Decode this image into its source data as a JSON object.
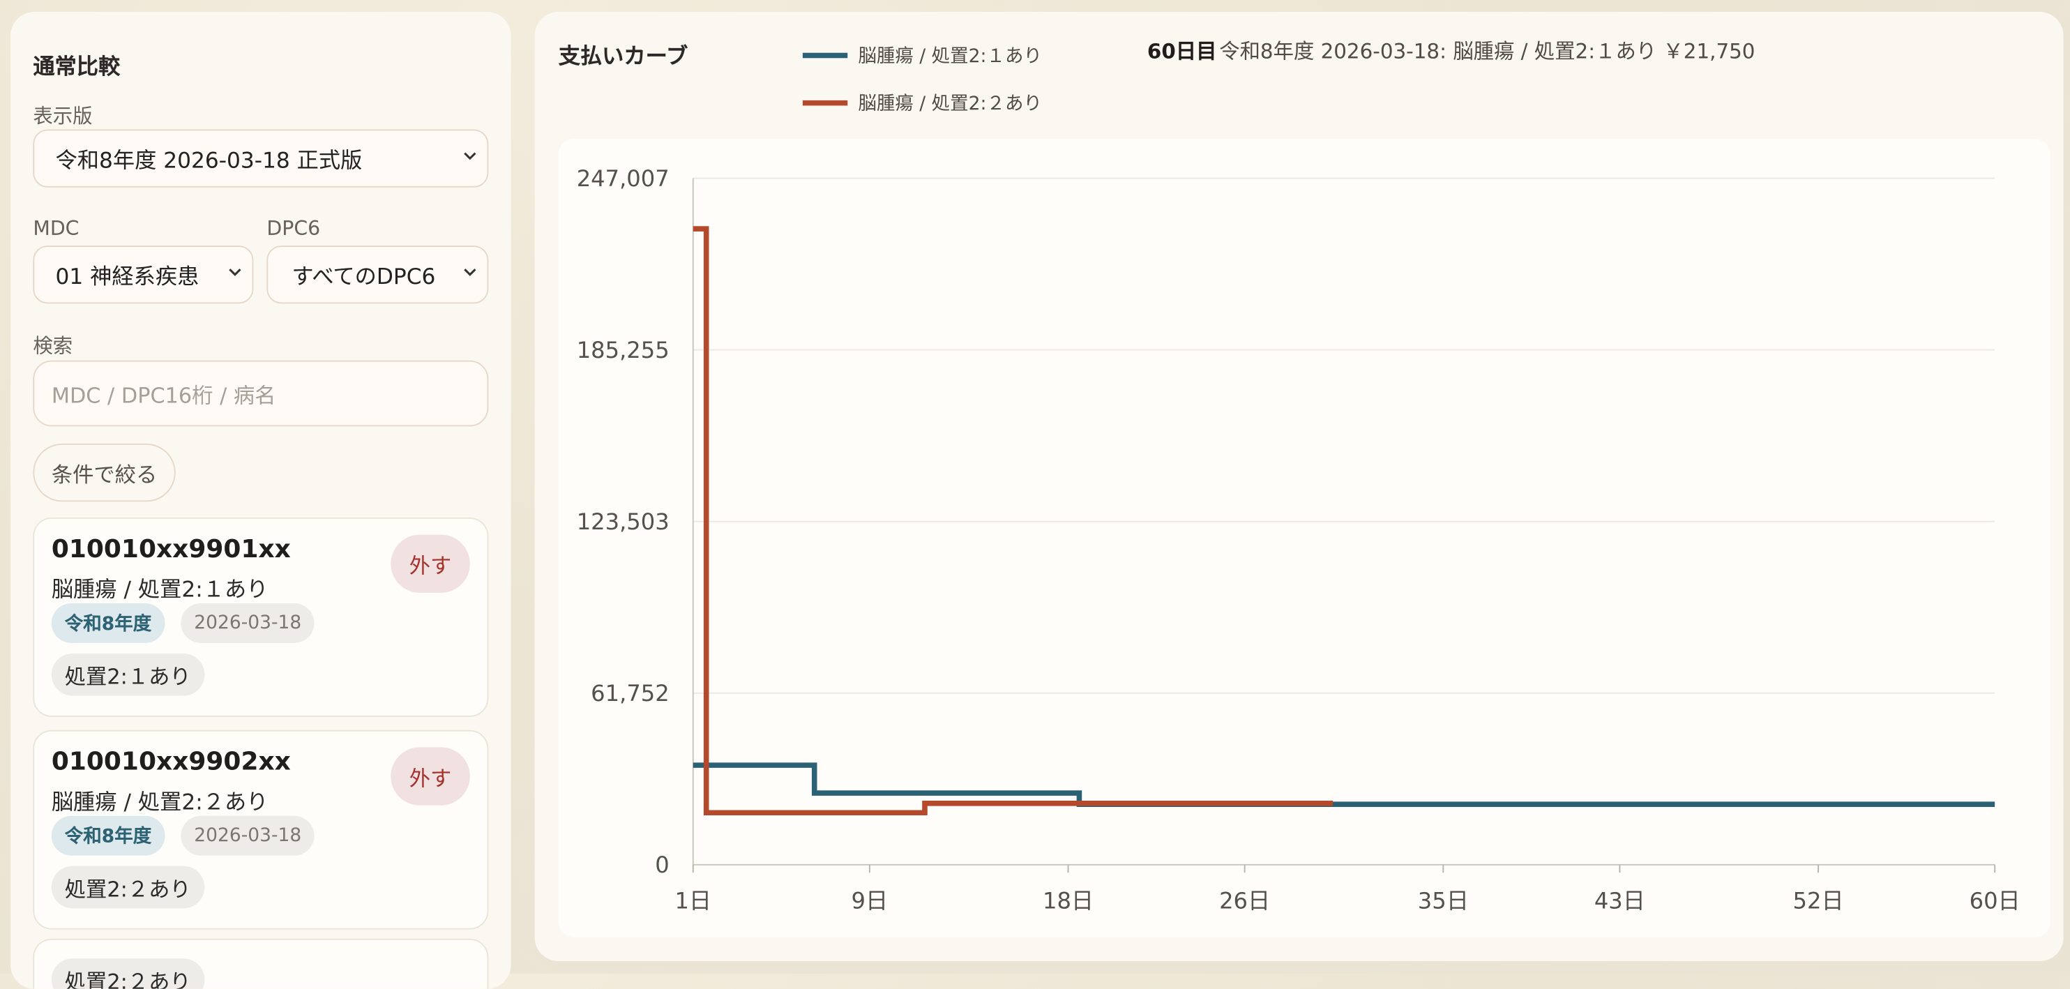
{
  "sidebar": {
    "title": "通常比較",
    "version_label": "表示版",
    "version_value": "令和8年度 2026-03-18 正式版",
    "mdc_label": "MDC",
    "mdc_value": "01 神経系疾患",
    "dpc6_label": "DPC6",
    "dpc6_value": "すべてのDPC6",
    "search_label": "検索",
    "search_placeholder": "MDC / DPC16桁 / 病名",
    "filter_button": "条件で絞る",
    "cards": [
      {
        "code": "010010xx9901xx",
        "name": "脳腫瘍 / 処置2:１あり",
        "remove": "外す",
        "era": "令和8年度",
        "date": "2026-03-18",
        "tag": "処置2:１あり"
      },
      {
        "code": "010010xx9902xx",
        "name": "脳腫瘍 / 処置2:２あり",
        "remove": "外す",
        "era": "令和8年度",
        "date": "2026-03-18",
        "tag": "処置2:２あり"
      }
    ],
    "partial_card_tag": "処置2:２あり"
  },
  "chart_panel": {
    "title": "支払いカーブ",
    "readout_day": "60日目",
    "readout_text": "令和8年度 2026-03-18: 脳腫瘍 / 処置2:１あり ￥21,750"
  },
  "chart_data": {
    "type": "line",
    "step": true,
    "title": "支払いカーブ",
    "xlabel": "",
    "ylabel": "",
    "xlim": [
      1,
      60
    ],
    "ylim": [
      0,
      247007
    ],
    "x_ticks": [
      1,
      9,
      18,
      26,
      35,
      43,
      52,
      60
    ],
    "x_tick_labels": [
      "1日",
      "9日",
      "18日",
      "26日",
      "35日",
      "43日",
      "52日",
      "60日"
    ],
    "y_ticks": [
      0,
      61752,
      123503,
      185255,
      247007
    ],
    "y_tick_labels": [
      "0",
      "61,752",
      "123,503",
      "185,255",
      "247,007"
    ],
    "grid": true,
    "legend_position": "top",
    "series": [
      {
        "name": "脳腫瘍 / 処置2:１あり",
        "color": "#2b6175",
        "points": [
          [
            1,
            35800
          ],
          [
            6.5,
            35800
          ],
          [
            6.5,
            25800
          ],
          [
            18.5,
            25800
          ],
          [
            18.5,
            21750
          ],
          [
            60,
            21750
          ]
        ]
      },
      {
        "name": "脳腫瘍 / 処置2:２あり",
        "color": "#b5492b",
        "points": [
          [
            1,
            228800
          ],
          [
            1.6,
            228800
          ],
          [
            1.6,
            18700
          ],
          [
            11.5,
            18700
          ],
          [
            11.5,
            22100
          ],
          [
            30,
            22100
          ]
        ]
      }
    ]
  }
}
